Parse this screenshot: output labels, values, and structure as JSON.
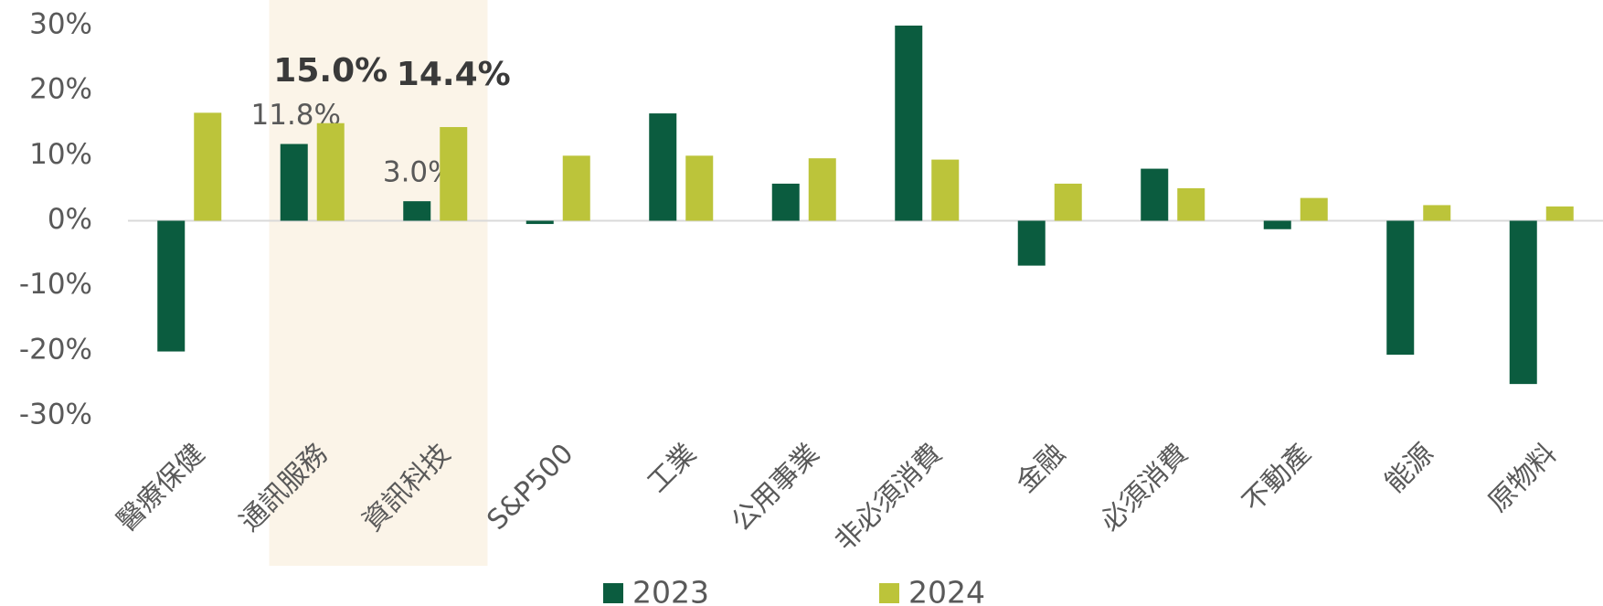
{
  "chart_data": {
    "type": "bar",
    "categories": [
      "醫療保健",
      "通訊服務",
      "資訊科技",
      "S&P500",
      "工業",
      "公用事業",
      "非必須消費",
      "金融",
      "必須消費",
      "不動產",
      "能源",
      "原物料"
    ],
    "series": [
      {
        "name": "2023",
        "color": "#0b5c3f",
        "values": [
          -20.1,
          11.8,
          3.0,
          -0.5,
          16.5,
          5.7,
          30.0,
          -6.9,
          8.0,
          -1.3,
          -20.6,
          -25.1
        ],
        "value_labels": [
          null,
          "11.8%",
          "3.0%",
          null,
          null,
          null,
          null,
          null,
          null,
          null,
          null,
          null
        ]
      },
      {
        "name": "2024",
        "color": "#bcc43a",
        "values": [
          16.6,
          15.0,
          14.4,
          10.0,
          10.0,
          9.6,
          9.4,
          5.7,
          5.0,
          3.5,
          2.4,
          2.2
        ],
        "value_labels": [
          null,
          "15.0%",
          "14.4%",
          null,
          null,
          null,
          null,
          null,
          null,
          null,
          null,
          null
        ]
      }
    ],
    "ylim": [
      -30,
      30
    ],
    "yticks": [
      {
        "value": 30,
        "label": "30%"
      },
      {
        "value": 20,
        "label": "20%"
      },
      {
        "value": 10,
        "label": "10%"
      },
      {
        "value": 0,
        "label": "0%"
      },
      {
        "value": -10,
        "label": "-10%"
      },
      {
        "value": -20,
        "label": "-20%"
      },
      {
        "value": -30,
        "label": "-30%"
      }
    ],
    "legend": "bottom"
  }
}
